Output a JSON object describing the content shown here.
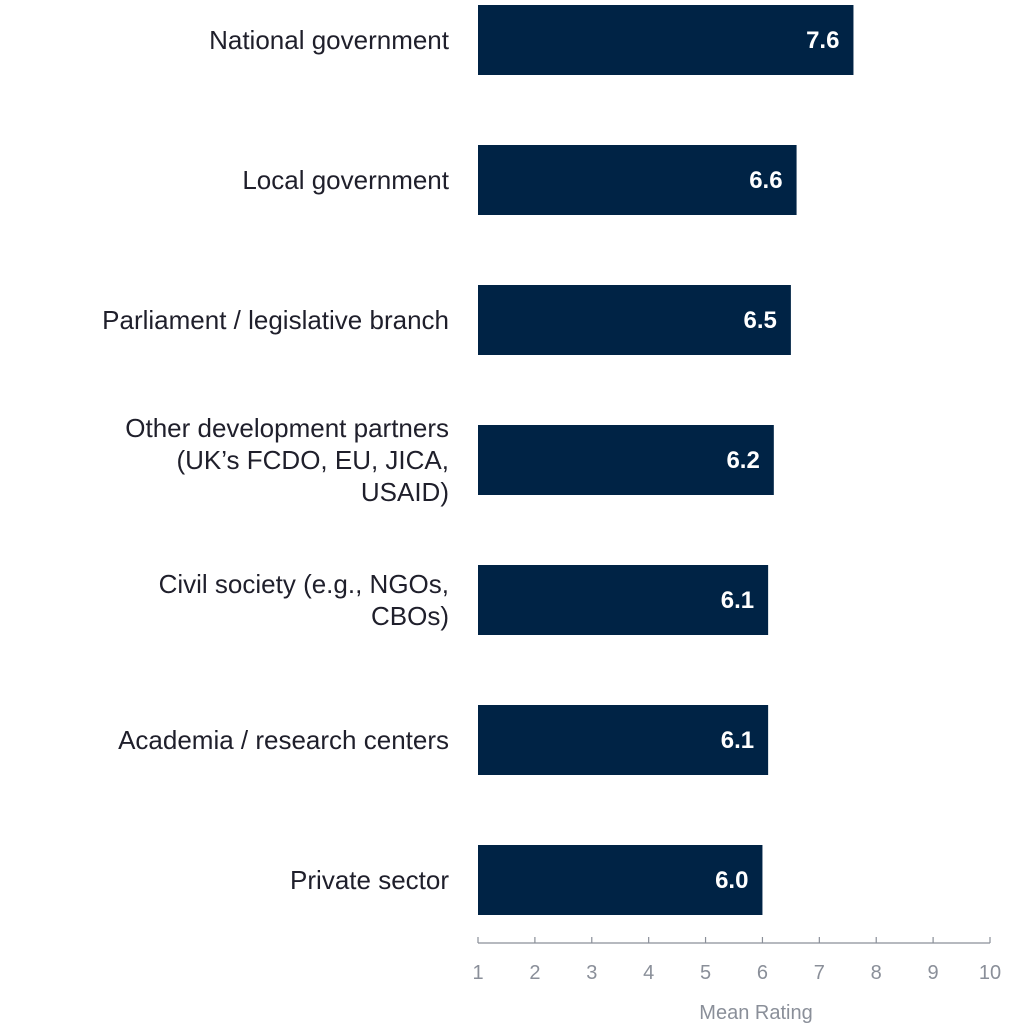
{
  "chart_data": {
    "type": "bar",
    "orientation": "horizontal",
    "categories": [
      "National government",
      "Local government",
      "Parliament / legislative branch",
      "Other development partners (UK’s FCDO, EU, JICA, USAID)",
      "Civil society (e.g., NGOs, CBOs)",
      "Academia / research centers",
      "Private sector"
    ],
    "category_lines": [
      [
        "National government"
      ],
      [
        "Local government"
      ],
      [
        "Parliament / legislative branch"
      ],
      [
        "Other development partners",
        "(UK’s FCDO, EU, JICA,",
        "USAID)"
      ],
      [
        "Civil society (e.g., NGOs,",
        "CBOs)"
      ],
      [
        "Academia / research centers"
      ],
      [
        "Private sector"
      ]
    ],
    "values": [
      7.6,
      6.6,
      6.5,
      6.2,
      6.1,
      6.1,
      6.0
    ],
    "value_labels": [
      "7.6",
      "6.6",
      "6.5",
      "6.2",
      "6.1",
      "6.1",
      "6.0"
    ],
    "xlabel": "Mean Rating",
    "xlim": [
      1,
      10
    ],
    "xticks": [
      1,
      2,
      3,
      4,
      5,
      6,
      7,
      8,
      9,
      10
    ],
    "grid": false,
    "bar_color": "#002345",
    "value_label_color": "#ffffff",
    "axis_color": "#8a8f99"
  }
}
